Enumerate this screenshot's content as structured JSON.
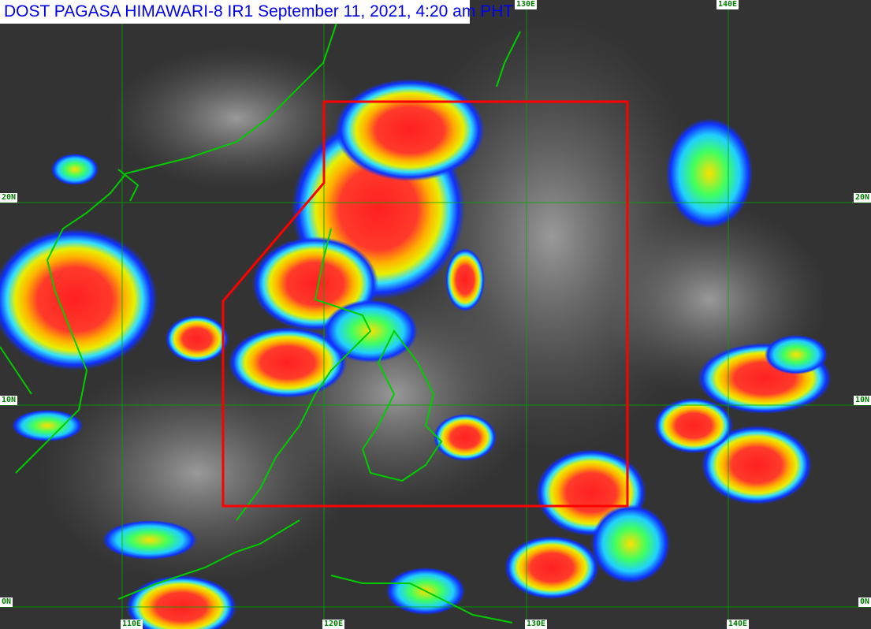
{
  "title": "DOST PAGASA HIMAWARI-8 IR1 September 11, 2021, 4:20 am PHT",
  "grid_labels": {
    "top": [
      "130E",
      "140E"
    ],
    "bottom": [
      "110E",
      "120E",
      "130E",
      "140E"
    ],
    "left": [
      "20N",
      "10N",
      "0N"
    ],
    "right": [
      "20N",
      "10N",
      "0N"
    ]
  },
  "colors": {
    "grid": "#00aa00",
    "coastline": "#00cc00",
    "area_of_responsibility": "#ff0000",
    "title_text": "#0000ee"
  }
}
